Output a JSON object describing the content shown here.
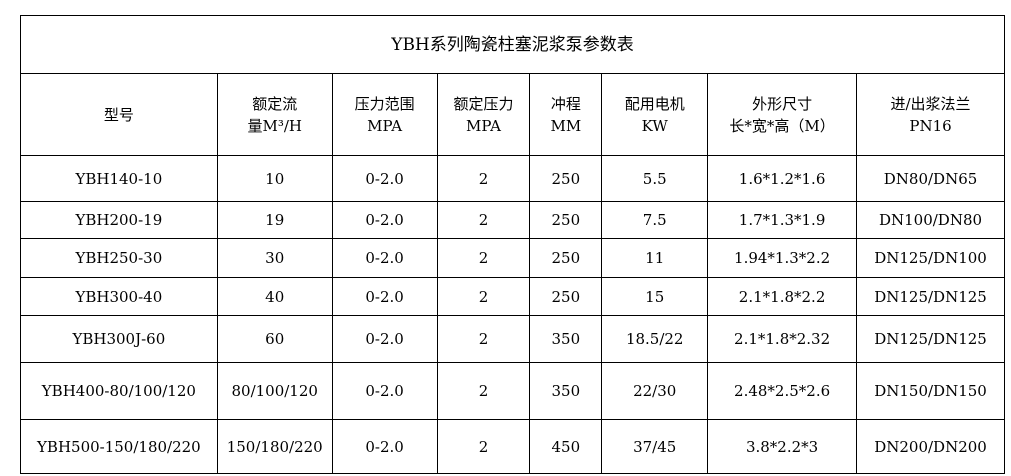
{
  "title": "YBH系列陶瓷柱塞泥浆泵参数表",
  "headers": [
    {
      "l1": "型号",
      "l2": ""
    },
    {
      "l1": "额定流",
      "l2": "量M³/H"
    },
    {
      "l1": "压力范围",
      "l2": "MPA"
    },
    {
      "l1": "额定压力",
      "l2": "MPA"
    },
    {
      "l1": "冲程",
      "l2": "MM"
    },
    {
      "l1": "配用电机",
      "l2": "KW"
    },
    {
      "l1": "外形尺寸",
      "l2": "长*宽*高（M）"
    },
    {
      "l1": "进/出浆法兰",
      "l2": "PN16"
    }
  ],
  "rows": [
    [
      "YBH140-10",
      "10",
      "0-2.0",
      "2",
      "250",
      "5.5",
      "1.6*1.2*1.6",
      "DN80/DN65"
    ],
    [
      "YBH200-19",
      "19",
      "0-2.0",
      "2",
      "250",
      "7.5",
      "1.7*1.3*1.9",
      "DN100/DN80"
    ],
    [
      "YBH250-30",
      "30",
      "0-2.0",
      "2",
      "250",
      "11",
      "1.94*1.3*2.2",
      "DN125/DN100"
    ],
    [
      "YBH300-40",
      "40",
      "0-2.0",
      "2",
      "250",
      "15",
      "2.1*1.8*2.2",
      "DN125/DN125"
    ],
    [
      "YBH300J-60",
      "60",
      "0-2.0",
      "2",
      "350",
      "18.5/22",
      "2.1*1.8*2.32",
      "DN125/DN125"
    ],
    [
      "YBH400-80/100/120",
      "80/100/120",
      "0-2.0",
      "2",
      "350",
      "22/30",
      "2.48*2.5*2.6",
      "DN150/DN150"
    ],
    [
      "YBH500-150/180/220",
      "150/180/220",
      "0-2.0",
      "2",
      "450",
      "37/45",
      "3.8*2.2*3",
      "DN200/DN200"
    ]
  ]
}
